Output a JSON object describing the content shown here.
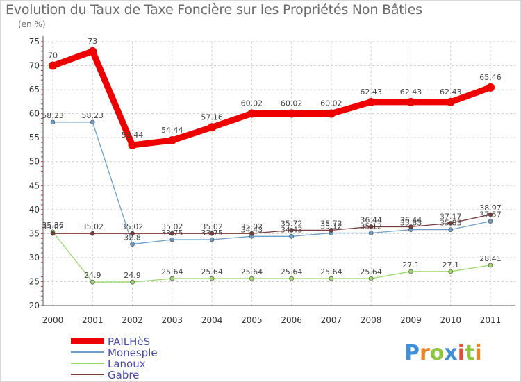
{
  "chart_data": {
    "type": "line",
    "title": "Evolution du Taux de Taxe Foncière sur les Propriétés Non Bâties",
    "unit_label": "(en %)",
    "x": [
      "2000",
      "2001",
      "2002",
      "2003",
      "2004",
      "2005",
      "2006",
      "2007",
      "2008",
      "2009",
      "2010",
      "2011"
    ],
    "ylim": [
      20,
      75
    ],
    "yticks": [
      20,
      25,
      30,
      35,
      40,
      45,
      50,
      55,
      60,
      65,
      70,
      75
    ],
    "grid": "horizontal dashed",
    "legend_position": "bottom-left",
    "series": [
      {
        "name": "PAILHèS",
        "color": "#ee0000",
        "width": 9,
        "marker_r": 6,
        "values": [
          70,
          73,
          53.44,
          54.44,
          57.16,
          60.02,
          60.02,
          60.02,
          62.43,
          62.43,
          62.43,
          65.46
        ],
        "labels": [
          "70",
          "73",
          "53.44",
          "54.44",
          "57.16",
          "60.02",
          "60.02",
          "60.02",
          "62.43",
          "62.43",
          "62.43",
          "65.46"
        ]
      },
      {
        "name": "Monesple",
        "color": "#6c9ec9",
        "width": 1.3,
        "marker_r": 3,
        "values": [
          58.23,
          58.23,
          32.8,
          33.75,
          33.75,
          34.43,
          34.43,
          35.12,
          35.12,
          35.83,
          35.83,
          37.57
        ],
        "labels": [
          "58.23",
          "58.23",
          "32.8",
          "33.75",
          "33.75",
          "34.43",
          "34.43",
          "35.12",
          "35.12",
          "35.83",
          "35.83",
          "37.57"
        ]
      },
      {
        "name": "Lanoux",
        "color": "#9ad86a",
        "width": 1.3,
        "marker_r": 3,
        "values": [
          35.36,
          24.9,
          24.9,
          25.64,
          25.64,
          25.64,
          25.64,
          25.64,
          25.64,
          27.1,
          27.1,
          28.41
        ],
        "labels": [
          "35.36",
          "24.9",
          "24.9",
          "25.64",
          "25.64",
          "25.64",
          "25.64",
          "25.64",
          "25.64",
          "27.1",
          "27.1",
          "28.41"
        ]
      },
      {
        "name": "Gabre",
        "color": "#7a3a3a",
        "width": 1.3,
        "marker_r": 3,
        "values": [
          35.02,
          35.02,
          35.02,
          35.02,
          35.02,
          35.02,
          35.72,
          35.72,
          36.44,
          36.44,
          37.17,
          38.97
        ],
        "labels": [
          "35.02",
          "35.02",
          "35.02",
          "35.02",
          "35.02",
          "35.02",
          "35.72",
          "35.72",
          "36.44",
          "36.44",
          "37.17",
          "38.97"
        ]
      }
    ]
  },
  "brand": {
    "logo_text": "Proxiti"
  }
}
